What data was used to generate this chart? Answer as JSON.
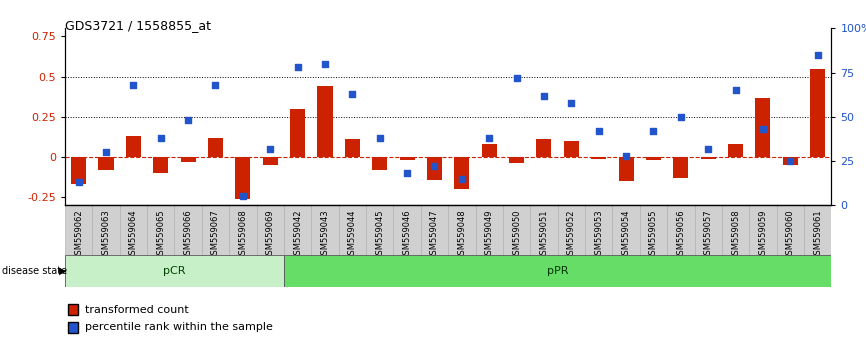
{
  "title": "GDS3721 / 1558855_at",
  "samples": [
    "GSM559062",
    "GSM559063",
    "GSM559064",
    "GSM559065",
    "GSM559066",
    "GSM559067",
    "GSM559068",
    "GSM559069",
    "GSM559042",
    "GSM559043",
    "GSM559044",
    "GSM559045",
    "GSM559046",
    "GSM559047",
    "GSM559048",
    "GSM559049",
    "GSM559050",
    "GSM559051",
    "GSM559052",
    "GSM559053",
    "GSM559054",
    "GSM559055",
    "GSM559056",
    "GSM559057",
    "GSM559058",
    "GSM559059",
    "GSM559060",
    "GSM559061"
  ],
  "bar_values": [
    -0.17,
    -0.08,
    0.13,
    -0.1,
    -0.03,
    0.12,
    -0.26,
    -0.05,
    0.3,
    0.44,
    0.11,
    -0.08,
    -0.02,
    -0.14,
    -0.2,
    0.08,
    -0.04,
    0.11,
    0.1,
    -0.01,
    -0.15,
    -0.02,
    -0.13,
    -0.01,
    0.08,
    0.37,
    -0.05,
    0.55
  ],
  "dot_values_pct": [
    13,
    30,
    68,
    38,
    48,
    68,
    5,
    32,
    78,
    80,
    63,
    38,
    18,
    22,
    15,
    38,
    72,
    62,
    58,
    42,
    28,
    42,
    50,
    32,
    65,
    43,
    25,
    85
  ],
  "pcr_count": 8,
  "ppr_count": 20,
  "bar_color": "#cc2200",
  "dot_color": "#2255cc",
  "ylim_left": [
    -0.3,
    0.8
  ],
  "ylim_right": [
    0,
    100
  ],
  "yticks_left": [
    -0.25,
    0.0,
    0.25,
    0.5,
    0.75
  ],
  "yticks_right": [
    0,
    25,
    50,
    75,
    100
  ],
  "hlines": [
    0.25,
    0.5
  ],
  "pcr_color": "#c8f0c8",
  "ppr_color": "#66dd66",
  "xtick_bg": "#d0d0d0",
  "background_color": "#ffffff"
}
